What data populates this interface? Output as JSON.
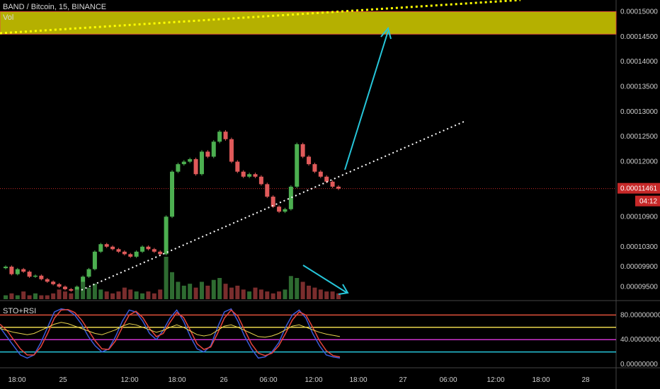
{
  "header": {
    "symbol_line": "BAND / Bitcoin, 15, BINANCE",
    "volume_label": "Vol"
  },
  "indicator": {
    "label": "STO+RSI"
  },
  "colors": {
    "background": "#000000",
    "up_candle": "#4caf50",
    "down_candle": "#e05a5a",
    "resistance_zone": "#b5b000",
    "zone_border": "#e0503a",
    "trendline": "#ffffff",
    "resistance_trendline": "#ffff00",
    "arrow": "#26c6da",
    "price_tag": "#c62828",
    "stoch_k": "#3b5bdb",
    "stoch_d": "#e8453c",
    "rsi": "#e8d44d",
    "level_80": "#e0503a",
    "level_60": "#e8d44d",
    "level_40": "#cc33cc",
    "level_20": "#26c6da"
  },
  "chart_data": {
    "type": "candlestick",
    "title": "BAND / Bitcoin, 15, BINANCE",
    "price_axis": {
      "ticks": [
        "0.00015000",
        "0.00014500",
        "0.00014000",
        "0.00013500",
        "0.00013000",
        "0.00012500",
        "0.00012000",
        "0.00011461",
        "0.00010900",
        "0.00010300",
        "0.00009900",
        "0.00009500"
      ],
      "last_price": "0.00011461",
      "countdown": "04:12",
      "range": [
        9.25e-05,
        0.0001512
      ]
    },
    "time_axis": {
      "ticks": [
        "18:00",
        "25",
        "12:00",
        "18:00",
        "26",
        "06:00",
        "12:00",
        "18:00",
        "27",
        "06:00",
        "12:00",
        "18:00",
        "28"
      ]
    },
    "indicator_axis": {
      "ticks": [
        "80.00000000",
        "40.00000000",
        "0.00000000"
      ],
      "levels": [
        80,
        60,
        40,
        20
      ],
      "range": [
        0,
        100
      ]
    },
    "close_series": [
      9.9,
      9.75,
      9.85,
      9.8,
      9.7,
      9.72,
      9.65,
      9.6,
      9.55,
      9.5,
      9.45,
      9.42,
      9.5,
      9.7,
      9.85,
      10.2,
      10.35,
      10.3,
      10.25,
      10.2,
      10.15,
      10.1,
      10.2,
      10.3,
      10.25,
      10.2,
      10.15,
      10.9,
      11.8,
      11.95,
      12.0,
      12.05,
      11.75,
      12.2,
      12.1,
      12.4,
      12.6,
      12.45,
      12.0,
      11.8,
      11.7,
      11.75,
      11.7,
      11.55,
      11.3,
      11.1,
      11.0,
      11.05,
      11.5,
      12.35,
      12.1,
      11.95,
      11.8,
      11.7,
      11.6,
      11.5,
      11.46
    ],
    "volume_series": [
      2,
      3,
      2,
      4,
      2,
      3,
      2,
      2,
      3,
      5,
      4,
      3,
      5,
      9,
      6,
      8,
      5,
      4,
      3,
      4,
      6,
      5,
      4,
      3,
      4,
      3,
      5,
      22,
      14,
      9,
      7,
      8,
      6,
      9,
      7,
      10,
      11,
      8,
      6,
      7,
      5,
      4,
      6,
      5,
      4,
      3,
      4,
      5,
      12,
      11,
      9,
      7,
      6,
      5,
      4,
      4,
      3
    ],
    "trendline_support": {
      "from": {
        "t": 20.5,
        "p": 9.45e-05
      },
      "to": {
        "t": 101,
        "p": 0.000125
      }
    },
    "trendline_resistance": {
      "from": {
        "t": 0,
        "p": 0.0001463
      },
      "to": {
        "t": 112,
        "p": 0.0001515
      }
    },
    "resistance_zone": [
      0.0001455,
      0.00015
    ],
    "stoch_k": [
      60,
      45,
      30,
      15,
      10,
      15,
      35,
      60,
      85,
      90,
      88,
      80,
      65,
      45,
      30,
      20,
      25,
      45,
      70,
      88,
      85,
      70,
      50,
      40,
      55,
      75,
      88,
      70,
      45,
      25,
      20,
      30,
      60,
      85,
      90,
      70,
      45,
      25,
      10,
      12,
      20,
      35,
      60,
      80,
      88,
      75,
      50,
      30,
      15,
      12,
      10
    ],
    "stoch_d": [
      65,
      55,
      40,
      25,
      15,
      15,
      28,
      50,
      75,
      88,
      89,
      84,
      72,
      55,
      38,
      25,
      24,
      38,
      60,
      80,
      86,
      76,
      58,
      45,
      50,
      68,
      84,
      76,
      55,
      33,
      24,
      28,
      50,
      75,
      88,
      78,
      55,
      33,
      18,
      14,
      18,
      30,
      50,
      72,
      85,
      80,
      60,
      38,
      22,
      14,
      12
    ],
    "rsi": [
      58,
      55,
      52,
      50,
      48,
      50,
      55,
      60,
      65,
      68,
      66,
      62,
      58,
      54,
      50,
      48,
      52,
      56,
      62,
      66,
      64,
      60,
      56,
      52,
      55,
      60,
      64,
      60,
      54,
      48,
      46,
      48,
      55,
      62,
      64,
      60,
      55,
      50,
      45,
      44,
      46,
      50,
      56,
      62,
      64,
      60,
      56,
      52,
      49,
      47,
      45
    ]
  }
}
